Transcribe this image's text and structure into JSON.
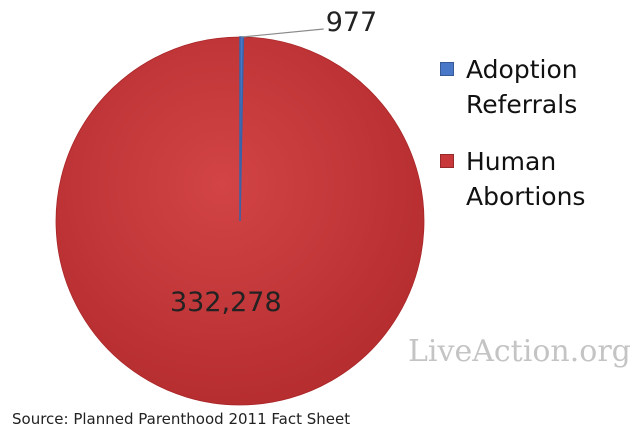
{
  "chart_data": {
    "type": "pie",
    "categories": [
      "Adoption Referrals",
      "Human Abortions"
    ],
    "values": [
      977,
      332278
    ],
    "data_labels": [
      "977",
      "332,278"
    ],
    "colors": [
      "#4a78c8",
      "#c8383a"
    ],
    "legend_position": "right",
    "title": "",
    "source": "Source: Planned Parenthood 2011 Fact Sheet"
  },
  "watermark": "LiveAction.org"
}
